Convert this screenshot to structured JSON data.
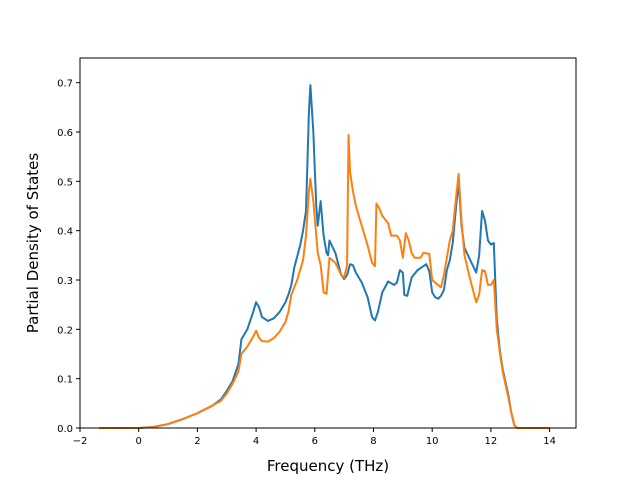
{
  "chart_data": {
    "type": "line",
    "title": "",
    "xlabel": "Frequency (THz)",
    "ylabel": "Partial Density of States",
    "xlim": [
      -2.0,
      14.9
    ],
    "ylim": [
      0.0,
      0.75
    ],
    "xticks": [
      -2,
      0,
      2,
      4,
      6,
      8,
      10,
      12,
      14
    ],
    "xtick_labels": [
      "−2",
      "0",
      "2",
      "4",
      "6",
      "8",
      "10",
      "12",
      "14"
    ],
    "yticks": [
      0.0,
      0.1,
      0.2,
      0.3,
      0.4,
      0.5,
      0.6,
      0.7
    ],
    "ytick_labels": [
      "0.0",
      "0.1",
      "0.2",
      "0.3",
      "0.4",
      "0.5",
      "0.6",
      "0.7"
    ],
    "grid": false,
    "legend": "none",
    "series": [
      {
        "color": "#1f77b4",
        "points": [
          [
            -1.35,
            0.0
          ],
          [
            0.0,
            0.0
          ],
          [
            0.5,
            0.002
          ],
          [
            1.0,
            0.008
          ],
          [
            1.5,
            0.018
          ],
          [
            2.0,
            0.03
          ],
          [
            2.5,
            0.045
          ],
          [
            2.8,
            0.058
          ],
          [
            3.0,
            0.075
          ],
          [
            3.2,
            0.095
          ],
          [
            3.4,
            0.13
          ],
          [
            3.5,
            0.18
          ],
          [
            3.7,
            0.2
          ],
          [
            3.9,
            0.235
          ],
          [
            4.0,
            0.255
          ],
          [
            4.1,
            0.245
          ],
          [
            4.2,
            0.225
          ],
          [
            4.4,
            0.217
          ],
          [
            4.6,
            0.222
          ],
          [
            4.8,
            0.235
          ],
          [
            5.0,
            0.255
          ],
          [
            5.1,
            0.27
          ],
          [
            5.2,
            0.29
          ],
          [
            5.3,
            0.325
          ],
          [
            5.5,
            0.37
          ],
          [
            5.6,
            0.4
          ],
          [
            5.7,
            0.44
          ],
          [
            5.8,
            0.64
          ],
          [
            5.85,
            0.695
          ],
          [
            5.95,
            0.6
          ],
          [
            6.05,
            0.45
          ],
          [
            6.1,
            0.41
          ],
          [
            6.2,
            0.46
          ],
          [
            6.3,
            0.39
          ],
          [
            6.4,
            0.355
          ],
          [
            6.45,
            0.35
          ],
          [
            6.5,
            0.38
          ],
          [
            6.7,
            0.355
          ],
          [
            6.9,
            0.31
          ],
          [
            7.0,
            0.302
          ],
          [
            7.1,
            0.31
          ],
          [
            7.2,
            0.332
          ],
          [
            7.3,
            0.33
          ],
          [
            7.4,
            0.315
          ],
          [
            7.6,
            0.295
          ],
          [
            7.8,
            0.265
          ],
          [
            7.95,
            0.225
          ],
          [
            8.05,
            0.218
          ],
          [
            8.15,
            0.235
          ],
          [
            8.3,
            0.275
          ],
          [
            8.5,
            0.297
          ],
          [
            8.7,
            0.29
          ],
          [
            8.8,
            0.295
          ],
          [
            8.9,
            0.32
          ],
          [
            9.0,
            0.315
          ],
          [
            9.05,
            0.27
          ],
          [
            9.15,
            0.268
          ],
          [
            9.3,
            0.305
          ],
          [
            9.5,
            0.32
          ],
          [
            9.7,
            0.328
          ],
          [
            9.8,
            0.332
          ],
          [
            9.9,
            0.318
          ],
          [
            10.0,
            0.275
          ],
          [
            10.1,
            0.265
          ],
          [
            10.2,
            0.262
          ],
          [
            10.3,
            0.268
          ],
          [
            10.4,
            0.28
          ],
          [
            10.5,
            0.32
          ],
          [
            10.6,
            0.34
          ],
          [
            10.7,
            0.375
          ],
          [
            10.8,
            0.44
          ],
          [
            10.9,
            0.5
          ],
          [
            11.0,
            0.41
          ],
          [
            11.1,
            0.365
          ],
          [
            11.3,
            0.34
          ],
          [
            11.5,
            0.315
          ],
          [
            11.6,
            0.35
          ],
          [
            11.7,
            0.44
          ],
          [
            11.8,
            0.42
          ],
          [
            11.9,
            0.38
          ],
          [
            12.0,
            0.372
          ],
          [
            12.1,
            0.375
          ],
          [
            12.2,
            0.22
          ],
          [
            12.3,
            0.16
          ],
          [
            12.4,
            0.12
          ],
          [
            12.6,
            0.065
          ],
          [
            12.7,
            0.03
          ],
          [
            12.8,
            0.005
          ],
          [
            12.9,
            0.0
          ],
          [
            14.0,
            0.0
          ]
        ]
      },
      {
        "color": "#ff7f0e",
        "points": [
          [
            -1.35,
            0.0
          ],
          [
            0.0,
            0.0
          ],
          [
            0.5,
            0.002
          ],
          [
            1.0,
            0.008
          ],
          [
            1.5,
            0.018
          ],
          [
            2.0,
            0.03
          ],
          [
            2.5,
            0.045
          ],
          [
            2.8,
            0.055
          ],
          [
            3.0,
            0.07
          ],
          [
            3.2,
            0.09
          ],
          [
            3.4,
            0.115
          ],
          [
            3.5,
            0.15
          ],
          [
            3.7,
            0.165
          ],
          [
            3.9,
            0.185
          ],
          [
            4.0,
            0.197
          ],
          [
            4.1,
            0.183
          ],
          [
            4.2,
            0.176
          ],
          [
            4.4,
            0.175
          ],
          [
            4.6,
            0.182
          ],
          [
            4.8,
            0.195
          ],
          [
            5.0,
            0.215
          ],
          [
            5.1,
            0.235
          ],
          [
            5.2,
            0.27
          ],
          [
            5.4,
            0.3
          ],
          [
            5.6,
            0.34
          ],
          [
            5.7,
            0.39
          ],
          [
            5.8,
            0.48
          ],
          [
            5.85,
            0.505
          ],
          [
            5.95,
            0.46
          ],
          [
            6.05,
            0.39
          ],
          [
            6.1,
            0.355
          ],
          [
            6.2,
            0.33
          ],
          [
            6.3,
            0.275
          ],
          [
            6.4,
            0.272
          ],
          [
            6.5,
            0.345
          ],
          [
            6.7,
            0.335
          ],
          [
            6.9,
            0.31
          ],
          [
            7.0,
            0.305
          ],
          [
            7.1,
            0.33
          ],
          [
            7.15,
            0.594
          ],
          [
            7.2,
            0.52
          ],
          [
            7.3,
            0.48
          ],
          [
            7.4,
            0.45
          ],
          [
            7.6,
            0.41
          ],
          [
            7.8,
            0.37
          ],
          [
            7.95,
            0.335
          ],
          [
            8.05,
            0.328
          ],
          [
            8.1,
            0.455
          ],
          [
            8.2,
            0.445
          ],
          [
            8.3,
            0.43
          ],
          [
            8.5,
            0.415
          ],
          [
            8.6,
            0.39
          ],
          [
            8.8,
            0.39
          ],
          [
            8.9,
            0.38
          ],
          [
            9.0,
            0.345
          ],
          [
            9.1,
            0.395
          ],
          [
            9.2,
            0.38
          ],
          [
            9.3,
            0.355
          ],
          [
            9.4,
            0.345
          ],
          [
            9.6,
            0.345
          ],
          [
            9.7,
            0.355
          ],
          [
            9.9,
            0.353
          ],
          [
            10.0,
            0.3
          ],
          [
            10.2,
            0.29
          ],
          [
            10.3,
            0.285
          ],
          [
            10.4,
            0.31
          ],
          [
            10.5,
            0.345
          ],
          [
            10.6,
            0.38
          ],
          [
            10.7,
            0.4
          ],
          [
            10.8,
            0.46
          ],
          [
            10.9,
            0.515
          ],
          [
            11.0,
            0.42
          ],
          [
            11.1,
            0.35
          ],
          [
            11.3,
            0.3
          ],
          [
            11.5,
            0.255
          ],
          [
            11.6,
            0.27
          ],
          [
            11.7,
            0.32
          ],
          [
            11.8,
            0.318
          ],
          [
            11.9,
            0.29
          ],
          [
            12.0,
            0.29
          ],
          [
            12.1,
            0.3
          ],
          [
            12.2,
            0.2
          ],
          [
            12.3,
            0.155
          ],
          [
            12.4,
            0.115
          ],
          [
            12.6,
            0.06
          ],
          [
            12.7,
            0.03
          ],
          [
            12.8,
            0.005
          ],
          [
            12.9,
            0.0
          ],
          [
            14.0,
            0.0
          ]
        ]
      }
    ]
  }
}
